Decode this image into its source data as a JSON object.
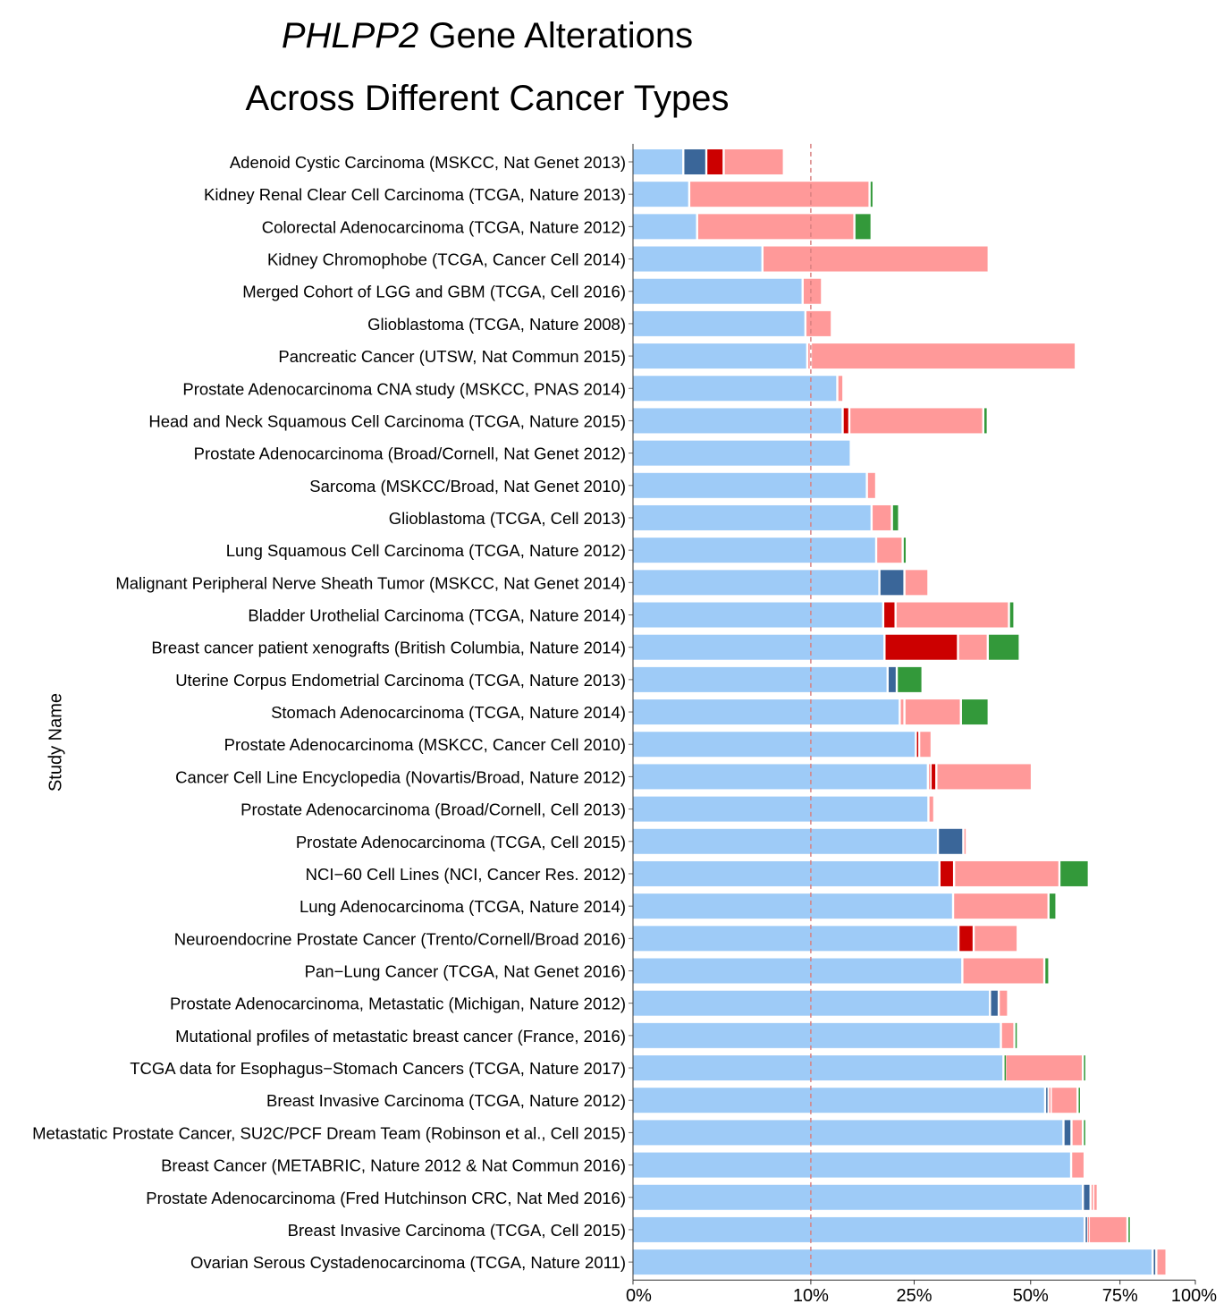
{
  "chart_data": {
    "type": "bar",
    "orientation": "horizontal",
    "stacked": true,
    "title": {
      "gene": "PHLPP2",
      "line1_suffix": " Gene Alterations",
      "line2": "Across Different Cancer Types"
    },
    "ylabel": "Study Name",
    "xlabel": "",
    "xlim": [
      0,
      100
    ],
    "xscale": "sqrt",
    "xticks": [
      0,
      10,
      25,
      50,
      75,
      100
    ],
    "xtick_labels": [
      "0%",
      "10%",
      "25%",
      "50%",
      "75%",
      "100%"
    ],
    "reference_line": {
      "x": 10,
      "style": "dashed",
      "color": "#d98080"
    },
    "series_colors": [
      "#9ecbf7",
      "#3a6699",
      "#cc0000",
      "#ff9999",
      "#33993a"
    ],
    "categories": [
      "Adenoid Cystic Carcinoma (MSKCC, Nat Genet 2013)",
      "Kidney Renal Clear Cell Carcinoma (TCGA, Nature 2013)",
      "Colorectal Adenocarcinoma (TCGA, Nature 2012)",
      "Kidney Chromophobe (TCGA, Cancer Cell 2014)",
      "Merged Cohort of LGG and GBM (TCGA, Cell 2016)",
      "Glioblastoma (TCGA, Nature 2008)",
      "Pancreatic Cancer (UTSW, Nat Commun 2015)",
      "Prostate Adenocarcinoma CNA study (MSKCC, PNAS 2014)",
      "Head and Neck Squamous Cell Carcinoma (TCGA, Nature 2015)",
      "Prostate Adenocarcinoma (Broad/Cornell, Nat Genet 2012)",
      "Sarcoma (MSKCC/Broad, Nat Genet 2010)",
      "Glioblastoma (TCGA, Cell 2013)",
      "Lung Squamous Cell Carcinoma (TCGA, Nature 2012)",
      "Malignant Peripheral Nerve Sheath Tumor (MSKCC, Nat Genet 2014)",
      "Bladder Urothelial Carcinoma (TCGA, Nature 2014)",
      "Breast cancer patient xenografts (British Columbia, Nature 2014)",
      "Uterine Corpus Endometrial Carcinoma (TCGA, Nature 2013)",
      "Stomach Adenocarcinoma (TCGA, Nature 2014)",
      "Prostate Adenocarcinoma (MSKCC, Cancer Cell 2010)",
      "Cancer Cell Line Encyclopedia (Novartis/Broad, Nature 2012)",
      "Prostate Adenocarcinoma (Broad/Cornell, Cell 2013)",
      "Prostate Adenocarcinoma (TCGA, Cell 2015)",
      "NCI−60 Cell Lines (NCI, Cancer Res. 2012)",
      "Lung Adenocarcinoma (TCGA, Nature 2014)",
      "Neuroendocrine Prostate Cancer (Trento/Cornell/Broad 2016)",
      "Pan−Lung Cancer (TCGA, Nat Genet 2016)",
      "Prostate Adenocarcinoma, Metastatic (Michigan, Nature 2012)",
      "Mutational profiles of metastatic breast cancer (France, 2016)",
      "TCGA data for Esophagus−Stomach Cancers (TCGA, Nature 2017)",
      "Breast Invasive Carcinoma (TCGA, Nature 2012)",
      "Metastatic Prostate Cancer, SU2C/PCF Dream Team (Robinson et al., Cell 2015)",
      "Breast Cancer (METABRIC, Nature 2012 & Nat Commun 2016)",
      "Prostate Adenocarcinoma (Fred Hutchinson CRC, Nat Med 2016)",
      "Breast Invasive Carcinoma (TCGA, Cell 2015)",
      "Ovarian Serous Cystadenocarcinoma (TCGA, Nature 2011)"
    ],
    "bar_segments": [
      [
        [
          0.0,
          0.8,
          0
        ],
        [
          0.8,
          1.7,
          1
        ],
        [
          1.7,
          2.6,
          2
        ],
        [
          2.6,
          7.2,
          3
        ]
      ],
      [
        [
          0.0,
          1.0,
          0
        ],
        [
          1.0,
          17.7,
          3
        ],
        [
          17.7,
          18.3,
          4
        ]
      ],
      [
        [
          0.0,
          1.3,
          0
        ],
        [
          1.3,
          15.5,
          3
        ],
        [
          15.5,
          18.0,
          4
        ]
      ],
      [
        [
          0.0,
          5.3,
          0
        ],
        [
          5.3,
          40.0,
          3
        ]
      ],
      [
        [
          0.0,
          9.1,
          0
        ],
        [
          9.1,
          11.3,
          3
        ]
      ],
      [
        [
          0.0,
          9.4,
          0
        ],
        [
          9.4,
          12.5,
          3
        ]
      ],
      [
        [
          0.0,
          9.6,
          0
        ],
        [
          9.6,
          10.0,
          3
        ],
        [
          10.0,
          62.0,
          3
        ]
      ],
      [
        [
          0.0,
          13.2,
          0
        ],
        [
          13.2,
          14.0,
          3
        ]
      ],
      [
        [
          0.0,
          13.9,
          0
        ],
        [
          13.9,
          14.8,
          2
        ],
        [
          14.8,
          38.8,
          3
        ],
        [
          38.8,
          39.8,
          4
        ]
      ],
      [
        [
          0.0,
          15.0,
          0
        ]
      ],
      [
        [
          0.0,
          17.3,
          0
        ],
        [
          17.3,
          18.7,
          3
        ]
      ],
      [
        [
          0.0,
          18.0,
          0
        ],
        [
          18.0,
          21.2,
          3
        ],
        [
          21.2,
          22.4,
          4
        ]
      ],
      [
        [
          0.0,
          18.7,
          0
        ],
        [
          18.7,
          23.0,
          3
        ],
        [
          23.0,
          23.7,
          4
        ]
      ],
      [
        [
          0.0,
          19.2,
          0
        ],
        [
          19.2,
          23.3,
          1
        ],
        [
          23.3,
          27.6,
          3
        ]
      ],
      [
        [
          0.0,
          19.8,
          0
        ],
        [
          19.8,
          21.8,
          2
        ],
        [
          21.8,
          44.7,
          3
        ],
        [
          44.7,
          46.0,
          4
        ]
      ],
      [
        [
          0.0,
          20.0,
          0
        ],
        [
          20.0,
          33.4,
          2
        ],
        [
          33.4,
          39.8,
          3
        ],
        [
          39.8,
          47.3,
          4
        ]
      ],
      [
        [
          0.0,
          20.5,
          0
        ],
        [
          20.5,
          22.0,
          1
        ],
        [
          22.0,
          26.5,
          4
        ]
      ],
      [
        [
          0.0,
          22.5,
          0
        ],
        [
          22.5,
          23.3,
          3
        ],
        [
          23.3,
          34.0,
          3
        ],
        [
          34.0,
          40.0,
          4
        ]
      ],
      [
        [
          0.0,
          25.3,
          0
        ],
        [
          25.3,
          25.9,
          2
        ],
        [
          25.9,
          28.2,
          3
        ]
      ],
      [
        [
          0.0,
          27.5,
          0
        ],
        [
          27.5,
          28.0,
          3
        ],
        [
          28.0,
          29.1,
          2
        ],
        [
          29.1,
          50.3,
          3
        ]
      ],
      [
        [
          0.0,
          27.6,
          0
        ],
        [
          27.6,
          28.7,
          3
        ]
      ],
      [
        [
          0.0,
          29.4,
          0
        ],
        [
          29.4,
          34.5,
          1
        ],
        [
          34.5,
          35.0,
          3
        ]
      ],
      [
        [
          0.0,
          29.7,
          0
        ],
        [
          29.7,
          32.6,
          2
        ],
        [
          32.6,
          57.5,
          3
        ],
        [
          57.5,
          65.7,
          4
        ]
      ],
      [
        [
          0.0,
          32.4,
          0
        ],
        [
          32.4,
          54.6,
          3
        ],
        [
          54.6,
          56.7,
          4
        ]
      ],
      [
        [
          0.0,
          33.5,
          0
        ],
        [
          33.5,
          36.7,
          2
        ],
        [
          36.7,
          46.8,
          3
        ]
      ],
      [
        [
          0.0,
          34.3,
          0
        ],
        [
          34.3,
          53.5,
          3
        ],
        [
          53.5,
          54.8,
          4
        ]
      ],
      [
        [
          0.0,
          40.3,
          0
        ],
        [
          40.3,
          42.3,
          1
        ],
        [
          42.3,
          44.5,
          3
        ]
      ],
      [
        [
          0.0,
          42.8,
          0
        ],
        [
          42.8,
          46.0,
          3
        ],
        [
          46.0,
          46.5,
          4
        ]
      ],
      [
        [
          0.0,
          43.4,
          0
        ],
        [
          43.4,
          43.8,
          4
        ],
        [
          43.8,
          64.0,
          3
        ],
        [
          64.0,
          65.0,
          4
        ]
      ],
      [
        [
          0.0,
          53.7,
          0
        ],
        [
          53.7,
          54.5,
          1
        ],
        [
          54.5,
          55.2,
          3
        ],
        [
          55.2,
          62.5,
          3
        ],
        [
          62.5,
          63.0,
          4
        ]
      ],
      [
        [
          0.0,
          58.6,
          0
        ],
        [
          58.6,
          60.8,
          1
        ],
        [
          60.8,
          64.0,
          3
        ],
        [
          64.0,
          64.5,
          4
        ]
      ],
      [
        [
          0.0,
          60.7,
          0
        ],
        [
          60.7,
          64.5,
          3
        ]
      ],
      [
        [
          0.0,
          64.0,
          0
        ],
        [
          64.0,
          66.2,
          1
        ],
        [
          66.2,
          67.0,
          3
        ],
        [
          67.0,
          68.3,
          3
        ]
      ],
      [
        [
          0.0,
          64.5,
          0
        ],
        [
          64.5,
          65.1,
          1
        ],
        [
          65.1,
          65.7,
          3
        ],
        [
          65.7,
          77.3,
          3
        ],
        [
          77.3,
          77.7,
          4
        ]
      ],
      [
        [
          0.0,
          85.4,
          0
        ],
        [
          85.4,
          86.6,
          1
        ],
        [
          86.6,
          90.0,
          3
        ]
      ]
    ]
  }
}
